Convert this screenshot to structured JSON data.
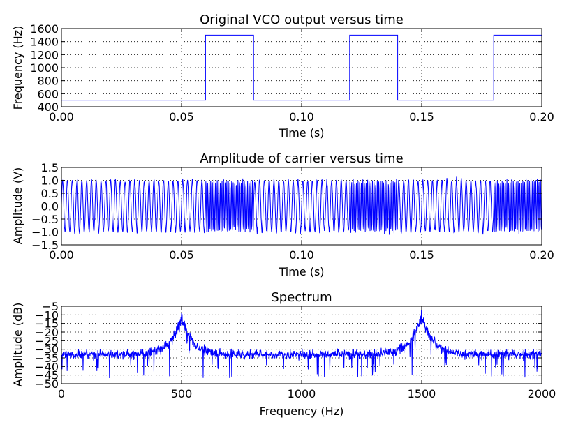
{
  "colors": {
    "series": "#0000ff",
    "grid": "#000000",
    "background": "#ffffff"
  },
  "chart_data": [
    {
      "type": "line",
      "title": "Original VCO output versus time",
      "xlabel": "Time (s)",
      "ylabel": "Frequency (Hz)",
      "xlim": [
        0,
        0.2
      ],
      "ylim": [
        400,
        1600
      ],
      "xticks": [
        0,
        0.05,
        0.1,
        0.15,
        0.2
      ],
      "xtick_labels": [
        "0.00",
        "0.05",
        "0.10",
        "0.15",
        "0.20"
      ],
      "yticks": [
        400,
        600,
        800,
        1000,
        1200,
        1400,
        1600
      ],
      "ytick_labels": [
        "400",
        "600",
        "800",
        "1000",
        "1200",
        "1400",
        "1600"
      ],
      "grid": true,
      "series": [
        {
          "x": [
            0,
            0.06,
            0.06,
            0.08,
            0.08,
            0.12,
            0.12,
            0.14,
            0.14,
            0.18,
            0.18,
            0.2
          ],
          "y": [
            500,
            500,
            1500,
            1500,
            500,
            500,
            1500,
            1500,
            500,
            500,
            1500,
            1500
          ]
        }
      ]
    },
    {
      "type": "line",
      "title": "Amplitude of carrier versus time",
      "xlabel": "Time (s)",
      "ylabel": "Amplitude (V)",
      "xlim": [
        0,
        0.2
      ],
      "ylim": [
        -1.5,
        1.5
      ],
      "xticks": [
        0,
        0.05,
        0.1,
        0.15,
        0.2
      ],
      "xtick_labels": [
        "0.00",
        "0.05",
        "0.10",
        "0.15",
        "0.20"
      ],
      "yticks": [
        -1.5,
        -1.0,
        -0.5,
        0.0,
        0.5,
        1.0,
        1.5
      ],
      "ytick_labels": [
        "−1.5",
        "−1.0",
        "−0.5",
        "0.0",
        "0.5",
        "1.0",
        "1.5"
      ],
      "grid": true,
      "signal": {
        "kind": "fm-carrier-with-noise",
        "frequency_low_hz": 500,
        "frequency_high_hz": 1500,
        "high_intervals_s": [
          [
            0.06,
            0.08
          ],
          [
            0.12,
            0.14
          ],
          [
            0.18,
            0.2
          ]
        ],
        "amplitude_v": 1.0,
        "noise_v": 0.08,
        "sample_rate_hz": 8000
      }
    },
    {
      "type": "line",
      "title": "Spectrum",
      "xlabel": "Frequency (Hz)",
      "ylabel": "Amplitude (dB)",
      "xlim": [
        0,
        2000
      ],
      "ylim": [
        -50,
        -5
      ],
      "xticks": [
        0,
        500,
        1000,
        1500,
        2000
      ],
      "xtick_labels": [
        "0",
        "500",
        "1000",
        "1500",
        "2000"
      ],
      "yticks": [
        -50,
        -45,
        -40,
        -35,
        -30,
        -25,
        -20,
        -15,
        -10,
        -5
      ],
      "ytick_labels": [
        "−50",
        "−45",
        "−40",
        "−35",
        "−30",
        "−25",
        "−20",
        "−15",
        "−10",
        "−5"
      ],
      "grid": true,
      "spectrum": {
        "noise_floor_db": -33,
        "noise_spread_db": 2.5,
        "peaks": [
          {
            "frequency_hz": 500,
            "peak_db": -9
          },
          {
            "frequency_hz": 1500,
            "peak_db": -7
          }
        ],
        "notches_hz": [
          200,
          450,
          590,
          700,
          1070,
          1250,
          1460,
          1840,
          1930
        ]
      }
    }
  ]
}
